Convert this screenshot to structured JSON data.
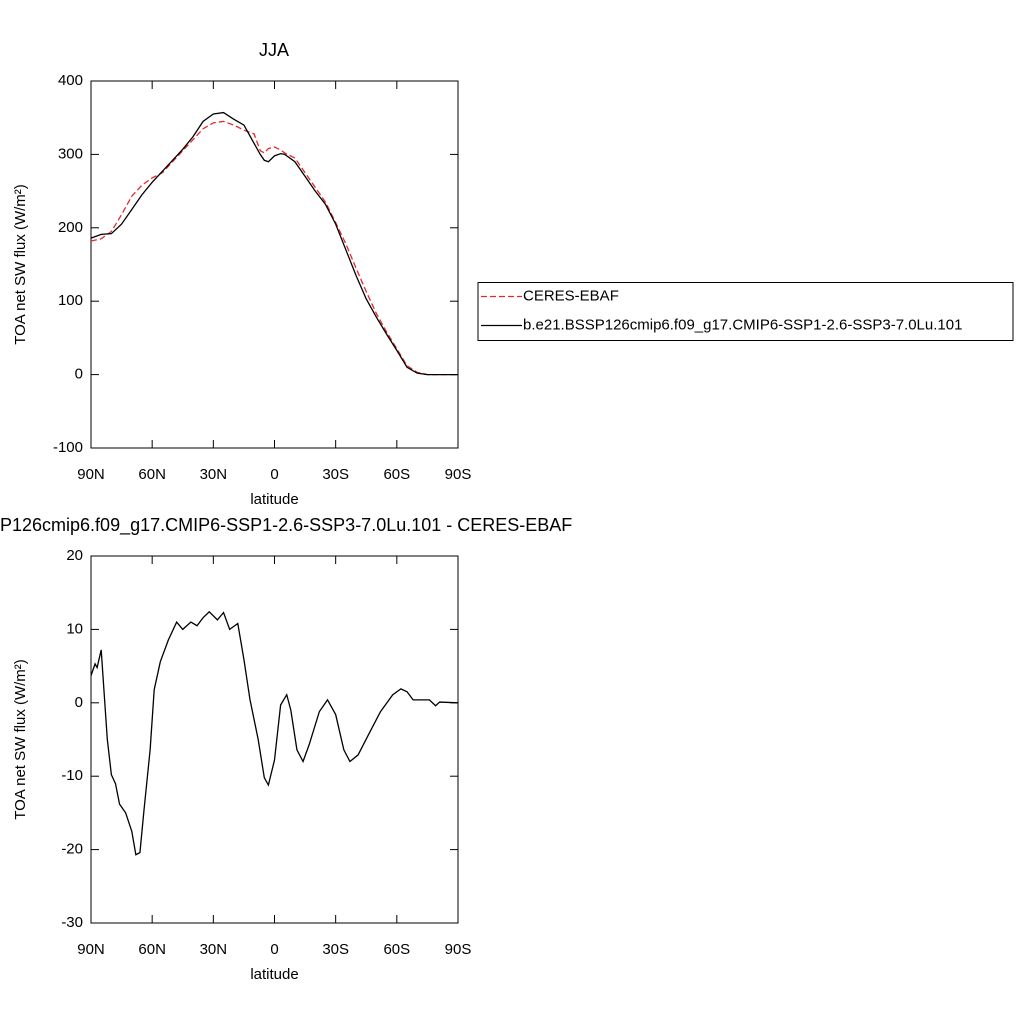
{
  "chart_data": [
    {
      "type": "line",
      "title": "JJA",
      "xlabel": "latitude",
      "ylabel": "TOA net SW flux (W/m²)",
      "x": [
        90,
        85,
        80,
        75,
        70,
        65,
        60,
        55,
        50,
        45,
        40,
        35,
        30,
        25,
        20,
        15,
        10,
        7,
        5,
        3,
        0,
        -3,
        -5,
        -10,
        -15,
        -20,
        -25,
        -30,
        -35,
        -40,
        -45,
        -50,
        -55,
        -60,
        -65,
        -70,
        -75,
        -80,
        -90
      ],
      "series": [
        {
          "name": "CERES-EBAF",
          "color": "#e8262a",
          "linestyle": "dashed",
          "values": [
            182,
            185,
            195,
            218,
            243,
            258,
            268,
            275,
            290,
            305,
            320,
            335,
            343,
            345,
            340,
            333,
            328,
            305,
            302,
            308,
            310,
            306,
            302,
            295,
            275,
            255,
            235,
            207,
            178,
            145,
            113,
            83,
            58,
            35,
            12,
            3,
            0,
            0,
            0
          ]
        },
        {
          "name": "b.e21.BSSP126cmip6.f09_g17.CMIP6-SSP1-2.6-SSP3-7.0Lu.101",
          "color": "#000000",
          "linestyle": "solid",
          "values": [
            186,
            191,
            192,
            205,
            225,
            245,
            262,
            277,
            292,
            307,
            324,
            345,
            355,
            357,
            348,
            340,
            315,
            300,
            292,
            290,
            298,
            301,
            300,
            290,
            270,
            250,
            232,
            205,
            170,
            135,
            103,
            78,
            55,
            33,
            10,
            2,
            0,
            0,
            0
          ]
        }
      ],
      "xlim": [
        90,
        -90
      ],
      "xticks": [
        {
          "value": 90,
          "label": "90N"
        },
        {
          "value": 60,
          "label": "60N"
        },
        {
          "value": 30,
          "label": "30N"
        },
        0,
        {
          "value": -30,
          "label": "30S"
        },
        {
          "value": -60,
          "label": "60S"
        },
        {
          "value": -90,
          "label": "90S"
        }
      ],
      "ylim": [
        -100,
        400
      ],
      "yticks": [
        -100,
        0,
        100,
        200,
        300,
        400
      ],
      "legend": "right"
    },
    {
      "type": "line",
      "title": "P126cmip6.f09_g17.CMIP6-SSP1-2.6-SSP3-7.0Lu.101 - CERES-EBAF",
      "xlabel": "latitude",
      "ylabel": "TOA net SW flux (W/m²)",
      "x": [
        90,
        88,
        87,
        85,
        82,
        80,
        78,
        76,
        73,
        70,
        68,
        66,
        64,
        61,
        59,
        56,
        52,
        48,
        45,
        41,
        38,
        35,
        32,
        28,
        25,
        22,
        18,
        15,
        12,
        8,
        5,
        3,
        0,
        -3,
        -6,
        -8,
        -11,
        -14,
        -17,
        -22,
        -26,
        -30,
        -34,
        -37,
        -41,
        -46,
        -52,
        -58,
        -62,
        -65,
        -68,
        -71,
        -76,
        -79,
        -81,
        -90
      ],
      "series": [
        {
          "color": "#000000",
          "linestyle": "solid",
          "values": [
            3.7,
            5.3,
            4.8,
            7.2,
            -5,
            -9.8,
            -11,
            -13.8,
            -15,
            -17.5,
            -20.7,
            -20.4,
            -14.6,
            -6.4,
            1.8,
            5.6,
            8.6,
            11,
            10,
            11,
            10.5,
            11.6,
            12.4,
            11.3,
            12.3,
            10,
            10.8,
            5.9,
            0.4,
            -5,
            -10.2,
            -11.2,
            -7.8,
            -0.3,
            1.1,
            -1,
            -6.4,
            -8,
            -5.7,
            -1.2,
            0.4,
            -1.6,
            -6.4,
            -8,
            -7.1,
            -4.4,
            -1.2,
            1.1,
            1.9,
            1.5,
            0.4,
            0.4,
            0.4,
            -0.4,
            0.1,
            0
          ]
        }
      ],
      "xlim": [
        90,
        -90
      ],
      "xticks": [
        {
          "value": 90,
          "label": "90N"
        },
        {
          "value": 60,
          "label": "60N"
        },
        {
          "value": 30,
          "label": "30N"
        },
        0,
        {
          "value": -30,
          "label": "30S"
        },
        {
          "value": -60,
          "label": "60S"
        },
        {
          "value": -90,
          "label": "90S"
        }
      ],
      "ylim": [
        -30,
        20
      ],
      "yticks": [
        -30,
        -20,
        -10,
        0,
        10,
        20
      ]
    }
  ]
}
